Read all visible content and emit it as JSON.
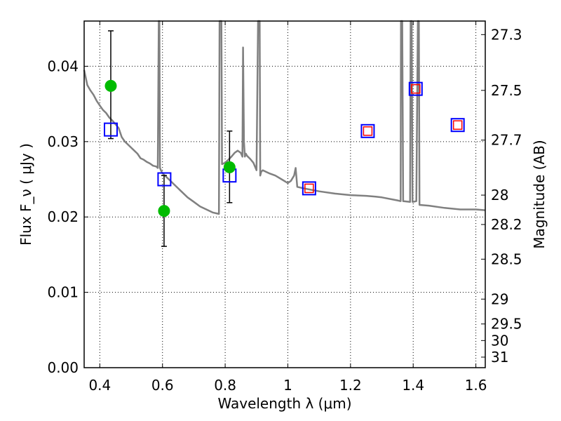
{
  "chart_data": {
    "type": "line",
    "xlabel": "Wavelength  λ (μm)",
    "ylabel": "Flux  F_ν  ( μJy )",
    "y2label": "Magnitude (AB)",
    "xlim": [
      0.35,
      1.63
    ],
    "ylim": [
      0.0,
      0.046
    ],
    "grid": true,
    "x_ticks": [
      0.4,
      0.6,
      0.8,
      1.0,
      1.2,
      1.4,
      1.6
    ],
    "x_tick_labels": [
      "0.4",
      "0.6",
      "0.8",
      "1",
      "1.2",
      "1.4",
      "1.6"
    ],
    "y_ticks": [
      0.0,
      0.01,
      0.02,
      0.03,
      0.04
    ],
    "y_tick_labels": [
      "0.00",
      "0.01",
      "0.02",
      "0.03",
      "0.04"
    ],
    "y2_ticks": [
      {
        "label": "27.3",
        "flux": 0.0442
      },
      {
        "label": "27.5",
        "flux": 0.0368
      },
      {
        "label": "27.7",
        "flux": 0.0302
      },
      {
        "label": "28",
        "flux": 0.0229
      },
      {
        "label": "28.2",
        "flux": 0.019
      },
      {
        "label": "28.5",
        "flux": 0.0144
      },
      {
        "label": "29",
        "flux": 0.0091
      },
      {
        "label": "29.5",
        "flux": 0.0058
      },
      {
        "label": "30",
        "flux": 0.0036
      },
      {
        "label": "31",
        "flux": 0.0014
      }
    ],
    "series": [
      {
        "kind": "model-spectrum",
        "color": "#808080",
        "x": [
          0.35,
          0.36,
          0.37,
          0.38,
          0.39,
          0.4,
          0.41,
          0.42,
          0.43,
          0.44,
          0.45,
          0.46,
          0.47,
          0.48,
          0.49,
          0.5,
          0.51,
          0.52,
          0.53,
          0.54,
          0.55,
          0.56,
          0.57,
          0.58,
          0.585,
          0.588,
          0.59,
          0.592,
          0.595,
          0.6,
          0.62,
          0.64,
          0.66,
          0.68,
          0.7,
          0.72,
          0.74,
          0.76,
          0.78,
          0.782,
          0.785,
          0.788,
          0.79,
          0.8,
          0.81,
          0.82,
          0.83,
          0.84,
          0.85,
          0.855,
          0.857,
          0.86,
          0.863,
          0.866,
          0.87,
          0.88,
          0.89,
          0.9,
          0.905,
          0.908,
          0.91,
          0.912,
          0.915,
          0.92,
          0.94,
          0.96,
          0.98,
          1.0,
          1.01,
          1.02,
          1.025,
          1.03,
          1.05,
          1.1,
          1.15,
          1.2,
          1.25,
          1.28,
          1.3,
          1.35,
          1.36,
          1.361,
          1.365,
          1.368,
          1.37,
          1.39,
          1.392,
          1.395,
          1.398,
          1.4,
          1.41,
          1.415,
          1.418,
          1.42,
          1.45,
          1.5,
          1.55,
          1.6,
          1.63
        ],
        "y": [
          0.0395,
          0.0375,
          0.0368,
          0.0362,
          0.0354,
          0.0348,
          0.0342,
          0.0338,
          0.0332,
          0.0328,
          0.0323,
          0.0318,
          0.0306,
          0.03,
          0.0296,
          0.0292,
          0.0288,
          0.0284,
          0.0278,
          0.0276,
          0.0273,
          0.0271,
          0.0268,
          0.0267,
          0.0265,
          0.046,
          0.046,
          0.0265,
          0.0262,
          0.0258,
          0.025,
          0.0242,
          0.0234,
          0.0226,
          0.022,
          0.0214,
          0.021,
          0.0206,
          0.0204,
          0.046,
          0.046,
          0.046,
          0.027,
          0.0272,
          0.0276,
          0.028,
          0.0285,
          0.0288,
          0.0285,
          0.028,
          0.0425,
          0.03,
          0.028,
          0.0284,
          0.0281,
          0.0277,
          0.0272,
          0.0262,
          0.046,
          0.046,
          0.046,
          0.0255,
          0.026,
          0.0262,
          0.0258,
          0.0255,
          0.025,
          0.0245,
          0.0248,
          0.0255,
          0.0265,
          0.024,
          0.0238,
          0.0234,
          0.0231,
          0.0229,
          0.0228,
          0.0227,
          0.0226,
          0.0222,
          0.0221,
          0.046,
          0.046,
          0.0221,
          0.0221,
          0.022,
          0.046,
          0.046,
          0.022,
          0.022,
          0.0221,
          0.046,
          0.046,
          0.0216,
          0.0215,
          0.0212,
          0.021,
          0.021,
          0.0209
        ]
      },
      {
        "kind": "observed-photometry",
        "color": "#00bb00",
        "x": [
          0.435,
          0.605,
          0.814
        ],
        "y": [
          0.0374,
          0.0208,
          0.0266
        ],
        "yerr_low": [
          0.0304,
          0.0161,
          0.0219
        ],
        "yerr_high": [
          0.0447,
          0.0255,
          0.0314
        ]
      },
      {
        "kind": "model-photometry",
        "color": "#0000ff",
        "x": [
          0.435,
          0.606,
          0.814,
          1.068,
          1.255,
          1.408,
          1.542
        ],
        "y": [
          0.0316,
          0.025,
          0.0255,
          0.0238,
          0.0314,
          0.037,
          0.0322
        ]
      },
      {
        "kind": "model-photometry-inner",
        "color": "#ff0000",
        "x": [
          1.068,
          1.255,
          1.408,
          1.542
        ],
        "y": [
          0.0238,
          0.0314,
          0.037,
          0.0322
        ]
      }
    ]
  }
}
